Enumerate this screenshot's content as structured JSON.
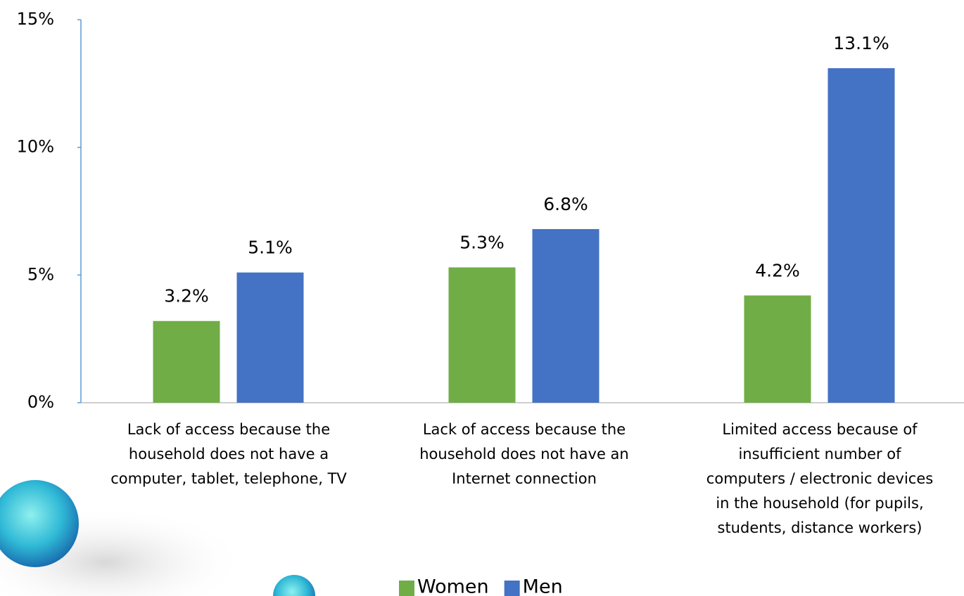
{
  "chart_data": {
    "type": "bar",
    "categories": [
      [
        "Lack of access  because the",
        "household does not have a",
        "computer, tablet, telephone, TV"
      ],
      [
        "Lack of access because the",
        "household does not have an",
        "Internet connection"
      ],
      [
        "Limited access because  of",
        "insufficient number of",
        "computers / electronic devices",
        "in the household (for pupils,",
        "students, distance workers)"
      ]
    ],
    "series": [
      {
        "name": "Women",
        "color": "#70ad47",
        "values": [
          3.2,
          5.3,
          4.2
        ],
        "value_labels": [
          "3.2%",
          "5.3%",
          "4.2%"
        ]
      },
      {
        "name": "Men",
        "color": "#4472c4",
        "values": [
          5.1,
          6.8,
          13.1
        ],
        "value_labels": [
          "5.1%",
          "6.8%",
          "13.1%"
        ]
      }
    ],
    "ylim": [
      0,
      15
    ],
    "yticks": [
      {
        "value": 0,
        "label": "0%"
      },
      {
        "value": 5,
        "label": "5%"
      },
      {
        "value": 10,
        "label": "10%"
      },
      {
        "value": 15,
        "label": "15%"
      }
    ],
    "legend": "bottom"
  }
}
